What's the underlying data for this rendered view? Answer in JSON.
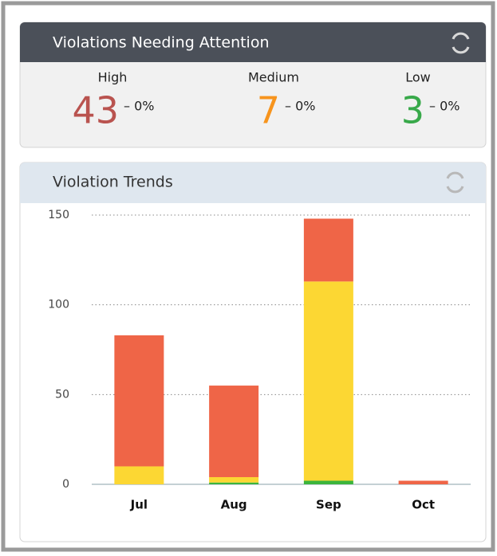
{
  "summary": {
    "title": "Violations Needing Attention",
    "items": [
      {
        "label": "High",
        "value": 43,
        "change": "– 0%",
        "color": "#b9534f"
      },
      {
        "label": "Medium",
        "value": 7,
        "change": "– 0%",
        "color": "#f7941d"
      },
      {
        "label": "Low",
        "value": 3,
        "change": "– 0%",
        "color": "#38a94a"
      }
    ]
  },
  "chart_data": {
    "type": "stacked_bar",
    "title": "Violation Trends",
    "categories": [
      "Jul",
      "Aug",
      "Sep",
      "Oct"
    ],
    "series": [
      {
        "name": "Low",
        "color": "#3cb43c",
        "values": [
          0,
          1,
          2,
          0
        ]
      },
      {
        "name": "Medium",
        "color": "#fcd733",
        "values": [
          10,
          3,
          111,
          0
        ]
      },
      {
        "name": "High",
        "color": "#ef6547",
        "values": [
          73,
          51,
          35,
          2
        ]
      }
    ],
    "ylim": [
      0,
      150
    ],
    "yticks": [
      0,
      50,
      100,
      150
    ],
    "grid": true
  }
}
